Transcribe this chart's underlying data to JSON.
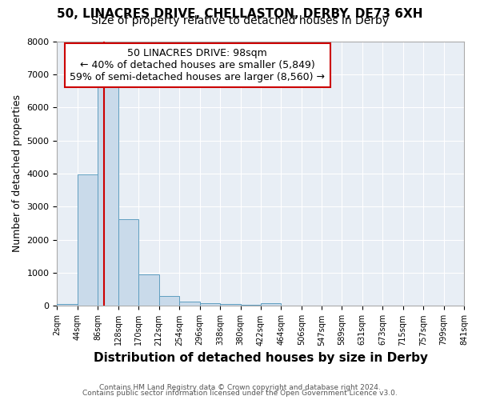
{
  "title1": "50, LINACRES DRIVE, CHELLASTON, DERBY, DE73 6XH",
  "title2": "Size of property relative to detached houses in Derby",
  "xlabel": "Distribution of detached houses by size in Derby",
  "ylabel": "Number of detached properties",
  "bin_edges": [
    2,
    44,
    86,
    128,
    170,
    212,
    254,
    296,
    338,
    380,
    422,
    464,
    506,
    547,
    589,
    631,
    673,
    715,
    757,
    799,
    841
  ],
  "bin_heights": [
    55,
    3980,
    6600,
    2620,
    960,
    310,
    130,
    90,
    55,
    30,
    80,
    3,
    2,
    2,
    1,
    1,
    1,
    1,
    1,
    1
  ],
  "bar_color": "#c9daea",
  "bar_edge_color": "#5f9ec0",
  "property_sqm": 98,
  "annotation_line1": "50 LINACRES DRIVE: 98sqm",
  "annotation_line2": "← 40% of detached houses are smaller (5,849)",
  "annotation_line3": "59% of semi-detached houses are larger (8,560) →",
  "vline_color": "#cc0000",
  "annotation_box_edgecolor": "#cc0000",
  "annotation_box_facecolor": "#ffffff",
  "ylim": [
    0,
    8000
  ],
  "yticks": [
    0,
    1000,
    2000,
    3000,
    4000,
    5000,
    6000,
    7000,
    8000
  ],
  "footnote1": "Contains HM Land Registry data © Crown copyright and database right 2024.",
  "footnote2": "Contains public sector information licensed under the Open Government Licence v3.0.",
  "fig_facecolor": "#ffffff",
  "axes_facecolor": "#e8eef5",
  "grid_color": "#ffffff",
  "title1_fontsize": 11,
  "title2_fontsize": 10,
  "xlabel_fontsize": 11,
  "ylabel_fontsize": 9
}
